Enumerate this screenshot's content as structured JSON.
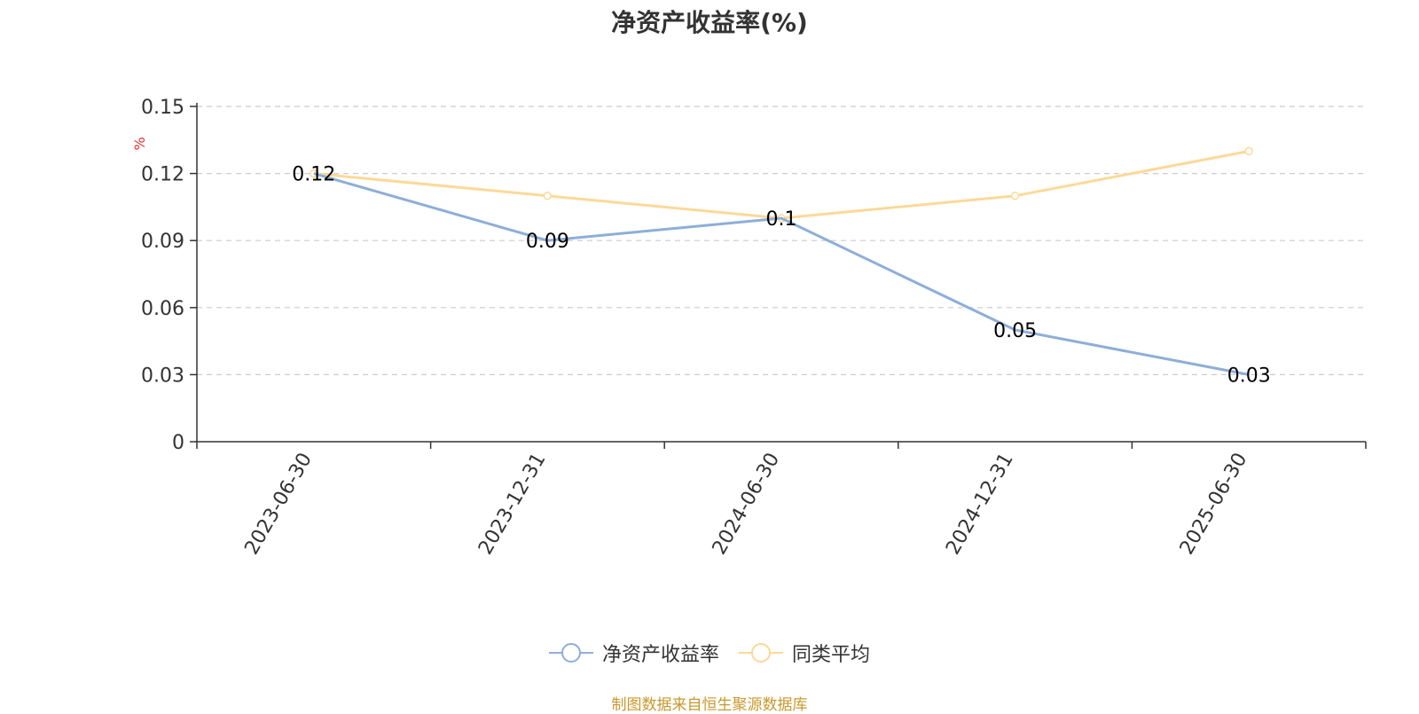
{
  "chart_data": {
    "type": "line",
    "title": "净资产收益率(%)",
    "ylabel": "%",
    "categories": [
      "2023-06-30",
      "2023-12-31",
      "2024-06-30",
      "2024-12-31",
      "2025-06-30"
    ],
    "y_ticks": [
      "0",
      "0.03",
      "0.06",
      "0.09",
      "0.12",
      "0.15"
    ],
    "ylim": [
      0,
      0.15
    ],
    "grid": true,
    "legend_position": "bottom",
    "series": [
      {
        "name": "净资产收益率",
        "values": [
          0.12,
          0.09,
          0.1,
          0.05,
          0.03
        ],
        "labels": [
          "0.12",
          "0.09",
          "0.1",
          "0.05",
          "0.03"
        ],
        "color": "#8eaed8"
      },
      {
        "name": "同类平均",
        "values": [
          0.12,
          0.11,
          0.1,
          0.11,
          0.13
        ],
        "color": "#fcd998"
      }
    ]
  },
  "source_note": "制图数据来自恒生聚源数据库",
  "colors": {
    "title": "#333333",
    "unit": "#e03030",
    "source": "#c8982c",
    "grid": "#cccccc",
    "axis": "#333333"
  },
  "icons": {
    "legend_marker": "circle-line-marker"
  }
}
